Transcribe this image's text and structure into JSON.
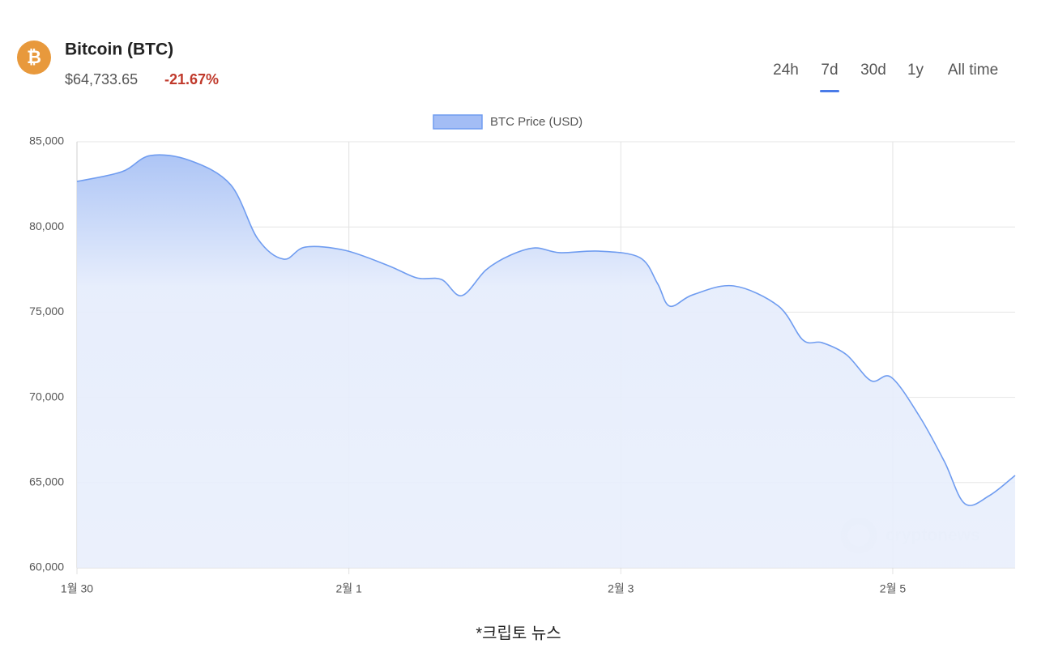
{
  "header": {
    "title": "Bitcoin (BTC)",
    "price": "$64,733.65",
    "change": "-21.67%"
  },
  "tabs": [
    "24h",
    "7d",
    "30d",
    "1y",
    "All time"
  ],
  "active_tab": 1,
  "watermark": "cryptonews",
  "footnote": "*크립토 뉴스",
  "chart_data": {
    "type": "line",
    "x": [
      0,
      0.33,
      0.54,
      0.83,
      1.13,
      1.33,
      1.52,
      1.68,
      1.97,
      2.29,
      2.5,
      2.68,
      2.83,
      3.01,
      3.19,
      3.37,
      3.55,
      3.84,
      4.14,
      4.27,
      4.36,
      4.53,
      4.83,
      5.16,
      5.34,
      5.48,
      5.66,
      5.84,
      5.99,
      6.2,
      6.38,
      6.53,
      6.71,
      6.9
    ],
    "series": [
      {
        "name": "BTC Price (USD)",
        "color": "#6f9cf0",
        "values": [
          82670,
          83240,
          84190,
          83900,
          82480,
          79300,
          78110,
          78820,
          78630,
          77730,
          77010,
          76920,
          75970,
          77490,
          78350,
          78770,
          78490,
          78580,
          78200,
          76680,
          75350,
          76020,
          76540,
          75350,
          73360,
          73210,
          72500,
          70980,
          71170,
          68840,
          66230,
          63760,
          64230,
          65420
        ]
      }
    ],
    "xlim": [
      0,
      6.9
    ],
    "xticks": [
      {
        "value": 0,
        "label": "1월 30"
      },
      {
        "value": 2,
        "label": "2월 1"
      },
      {
        "value": 4,
        "label": "2월 3"
      },
      {
        "value": 6,
        "label": "2월 5"
      }
    ],
    "ylim": [
      60000,
      85000
    ],
    "yticks": [
      {
        "value": 60000,
        "label": "60,000"
      },
      {
        "value": 65000,
        "label": "65,000"
      },
      {
        "value": 70000,
        "label": "70,000"
      },
      {
        "value": 75000,
        "label": "75,000"
      },
      {
        "value": 80000,
        "label": "80,000"
      },
      {
        "value": 85000,
        "label": "85,000"
      }
    ],
    "grid": true,
    "fill": true,
    "legend": "top"
  }
}
